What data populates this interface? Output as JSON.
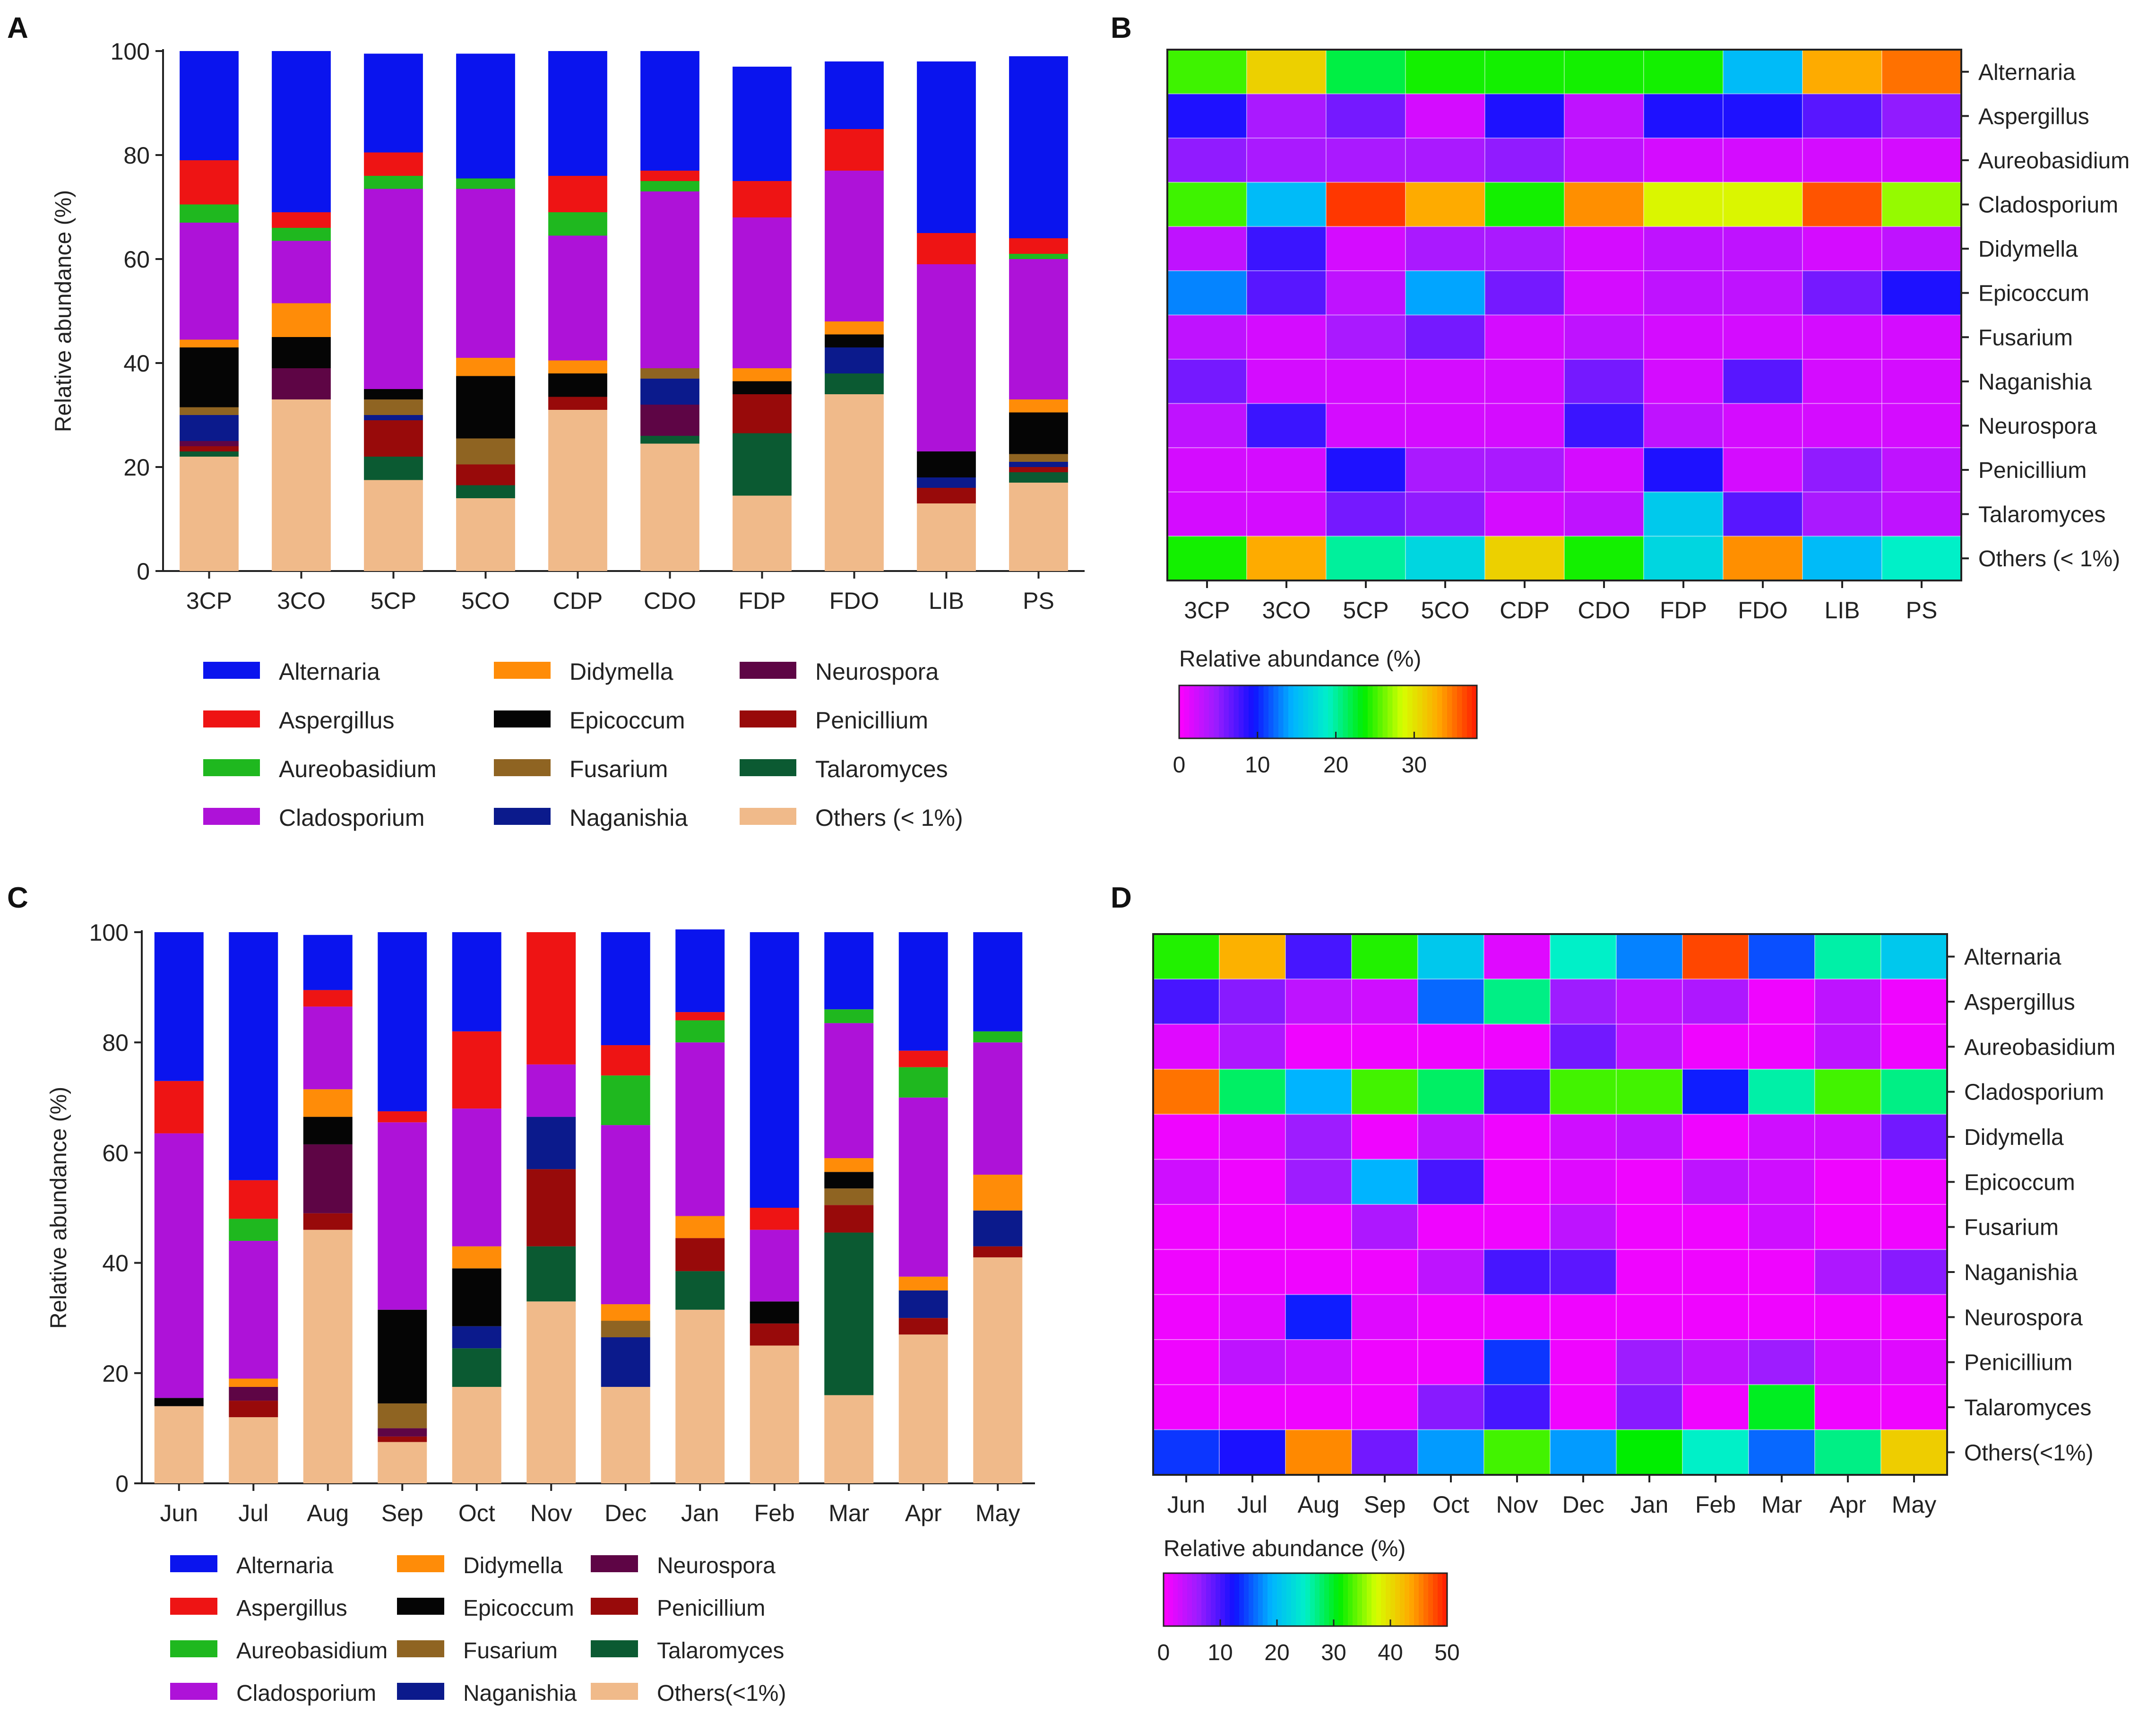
{
  "panels": {
    "a": "A",
    "b": "B",
    "c": "C",
    "d": "D"
  },
  "genera": [
    "Alternaria",
    "Aspergillus",
    "Aureobasidium",
    "Cladosporium",
    "Didymella",
    "Epicoccum",
    "Fusarium",
    "Naganishia",
    "Neurospora",
    "Penicillium",
    "Talaromyces"
  ],
  "colors": {
    "Alternaria": "#0a14ee",
    "Aspergillus": "#ee1414",
    "Aureobasidium": "#1fb81f",
    "Cladosporium": "#ae12d8",
    "Didymella": "#ff8c08",
    "Epicoccum": "#050505",
    "Fusarium": "#8f6422",
    "Naganishia": "#0b1a8c",
    "Neurospora": "#5e0545",
    "Penicillium": "#980a0a",
    "Talaromyces": "#0b5a32",
    "Others": "#f0ba8a"
  },
  "chart_data": [
    {
      "id": "A",
      "type": "bar",
      "stacked": true,
      "ylabel": "Relative abundance (%)",
      "ylim": [
        0,
        100
      ],
      "yticks": [
        0,
        20,
        40,
        60,
        80,
        100
      ],
      "categories": [
        "3CP",
        "3CO",
        "5CP",
        "5CO",
        "CDP",
        "CDO",
        "FDP",
        "FDO",
        "LIB",
        "PS"
      ],
      "series": [
        {
          "name": "Others (< 1%)",
          "key": "Others",
          "values": [
            22,
            33,
            17.5,
            14,
            31,
            24.5,
            14.5,
            34,
            13,
            17
          ]
        },
        {
          "name": "Talaromyces",
          "key": "Talaromyces",
          "values": [
            1,
            0,
            4.5,
            2.5,
            0,
            1.5,
            12,
            4,
            0,
            2
          ]
        },
        {
          "name": "Penicillium",
          "key": "Penicillium",
          "values": [
            1,
            0,
            7,
            4,
            2.5,
            0,
            7.5,
            0,
            3,
            1
          ]
        },
        {
          "name": "Neurospora",
          "key": "Neurospora",
          "values": [
            1,
            6,
            0,
            0,
            0,
            6,
            0,
            0,
            0,
            0
          ]
        },
        {
          "name": "Naganishia",
          "key": "Naganishia",
          "values": [
            5,
            0,
            1,
            0,
            0,
            5,
            0,
            5,
            2,
            1
          ]
        },
        {
          "name": "Fusarium",
          "key": "Fusarium",
          "values": [
            1.5,
            0,
            3,
            5,
            0,
            2,
            0,
            0,
            0,
            1.5
          ]
        },
        {
          "name": "Epicoccum",
          "key": "Epicoccum",
          "values": [
            11.5,
            6,
            2,
            12,
            4.5,
            0,
            2.5,
            2.5,
            5,
            8
          ]
        },
        {
          "name": "Didymella",
          "key": "Didymella",
          "values": [
            1.5,
            6.5,
            0,
            3.5,
            2.5,
            0,
            2.5,
            2.5,
            0,
            2.5
          ]
        },
        {
          "name": "Cladosporium",
          "key": "Cladosporium",
          "values": [
            22.5,
            12,
            38.5,
            32.5,
            24,
            34,
            29,
            29,
            36,
            27
          ]
        },
        {
          "name": "Aureobasidium",
          "key": "Aureobasidium",
          "values": [
            3.5,
            2.5,
            2.5,
            2,
            4.5,
            2,
            0,
            0,
            0,
            1
          ]
        },
        {
          "name": "Aspergillus",
          "key": "Aspergillus",
          "values": [
            8.5,
            3,
            4.5,
            0,
            7,
            2,
            7,
            8,
            6,
            3
          ]
        },
        {
          "name": "Alternaria",
          "key": "Alternaria",
          "values": [
            21,
            31,
            19,
            24,
            24,
            23,
            22,
            13,
            33,
            35
          ]
        }
      ],
      "legend": {
        "columns": [
          [
            "Alternaria",
            "Aspergillus",
            "Aureobasidium",
            "Cladosporium"
          ],
          [
            "Didymella",
            "Epicoccum",
            "Fusarium",
            "Naganishia"
          ],
          [
            "Neurospora",
            "Penicillium",
            "Talaromyces",
            "Others (< 1%)"
          ]
        ],
        "keys": [
          [
            "Alternaria",
            "Aspergillus",
            "Aureobasidium",
            "Cladosporium"
          ],
          [
            "Didymella",
            "Epicoccum",
            "Fusarium",
            "Naganishia"
          ],
          [
            "Neurospora",
            "Penicillium",
            "Talaromyces",
            "Others"
          ]
        ]
      }
    },
    {
      "id": "B",
      "type": "heatmap",
      "colorbar_label": "Relative abundance (%)",
      "vmin": 0,
      "vmax": 38,
      "colorbar_ticks": [
        0,
        10,
        20,
        30
      ],
      "columns": [
        "3CP",
        "3CO",
        "5CP",
        "5CO",
        "CDP",
        "CDO",
        "FDP",
        "FDO",
        "LIB",
        "PS"
      ],
      "rows": [
        "Alternaria",
        "Aspergillus",
        "Aureobasidium",
        "Cladosporium",
        "Didymella",
        "Epicoccum",
        "Fusarium",
        "Naganishia",
        "Neurospora",
        "Penicillium",
        "Talaromyces",
        "Others (< 1%)"
      ],
      "values": [
        [
          25,
          31,
          22,
          24,
          24,
          24,
          24,
          15,
          33,
          35
        ],
        [
          9,
          4,
          6,
          2,
          9,
          3,
          9,
          9,
          7,
          5
        ],
        [
          5,
          4,
          4,
          4,
          5,
          3,
          2,
          2,
          2,
          2
        ],
        [
          25,
          15,
          37,
          33,
          24,
          34,
          29,
          29,
          36,
          27
        ],
        [
          3,
          8,
          2,
          4,
          4,
          2,
          3,
          3,
          2,
          3
        ],
        [
          13,
          7,
          3,
          14,
          6,
          2,
          3,
          3,
          6,
          9
        ],
        [
          3,
          2,
          4,
          6,
          2,
          3,
          2,
          2,
          2,
          2
        ],
        [
          6,
          2,
          2,
          2,
          2,
          6,
          2,
          7,
          2,
          2
        ],
        [
          3,
          8,
          2,
          2,
          2,
          8,
          3,
          2,
          2,
          2
        ],
        [
          2,
          2,
          9,
          4,
          4,
          2,
          9,
          2,
          5,
          3
        ],
        [
          2,
          2,
          6,
          5,
          2,
          3,
          16,
          7,
          4,
          3
        ],
        [
          24,
          33,
          20,
          17,
          31,
          24,
          17,
          34,
          15,
          19
        ]
      ]
    },
    {
      "id": "C",
      "type": "bar",
      "stacked": true,
      "ylabel": "Relative abundance (%)",
      "ylim": [
        0,
        100
      ],
      "yticks": [
        0,
        20,
        40,
        60,
        80,
        100
      ],
      "categories": [
        "Jun",
        "Jul",
        "Aug",
        "Sep",
        "Oct",
        "Nov",
        "Dec",
        "Jan",
        "Feb",
        "Mar",
        "Apr",
        "May"
      ],
      "series": [
        {
          "name": "Others(<1%)",
          "key": "Others",
          "values": [
            14,
            12,
            46,
            7.5,
            17.5,
            33,
            17.5,
            31.5,
            25,
            16,
            27,
            41
          ]
        },
        {
          "name": "Talaromyces",
          "key": "Talaromyces",
          "values": [
            0,
            0,
            0,
            0,
            7,
            10,
            0,
            7,
            0,
            29.5,
            0,
            0
          ]
        },
        {
          "name": "Penicillium",
          "key": "Penicillium",
          "values": [
            0,
            3,
            3,
            1,
            0,
            14,
            0,
            6,
            4,
            5,
            3,
            2
          ]
        },
        {
          "name": "Neurospora",
          "key": "Neurospora",
          "values": [
            0,
            2.5,
            12.5,
            1.5,
            0,
            0,
            0,
            0,
            0,
            0,
            0,
            0
          ]
        },
        {
          "name": "Naganishia",
          "key": "Naganishia",
          "values": [
            0,
            0,
            0,
            0,
            4,
            9.5,
            9,
            0,
            0,
            0,
            5,
            6.5
          ]
        },
        {
          "name": "Fusarium",
          "key": "Fusarium",
          "values": [
            0,
            0,
            0,
            4.5,
            0,
            0,
            3,
            0,
            0,
            3,
            0,
            0
          ]
        },
        {
          "name": "Epicoccum",
          "key": "Epicoccum",
          "values": [
            1.5,
            0,
            5,
            17,
            10.5,
            0,
            0,
            0,
            4,
            3,
            0,
            0
          ]
        },
        {
          "name": "Didymella",
          "key": "Didymella",
          "values": [
            0,
            1.5,
            5,
            0,
            4,
            0,
            3,
            4,
            0,
            2.5,
            2.5,
            6.5
          ]
        },
        {
          "name": "Cladosporium",
          "key": "Cladosporium",
          "values": [
            48,
            25,
            15,
            34,
            25,
            9.5,
            32.5,
            31.5,
            13,
            24.5,
            32.5,
            24
          ]
        },
        {
          "name": "Aureobasidium",
          "key": "Aureobasidium",
          "values": [
            0,
            4,
            0,
            0,
            0,
            0,
            9,
            4,
            0,
            2.5,
            5.5,
            2
          ]
        },
        {
          "name": "Aspergillus",
          "key": "Aspergillus",
          "values": [
            9.5,
            7,
            3,
            2,
            14,
            24,
            5.5,
            1.5,
            4,
            0,
            3,
            0
          ]
        },
        {
          "name": "Alternaria",
          "key": "Alternaria",
          "values": [
            27,
            45,
            10,
            32.5,
            18,
            0,
            20.5,
            15,
            50,
            14,
            21.5,
            18
          ]
        }
      ],
      "legend": {
        "columns": [
          [
            "Alternaria",
            "Aspergillus",
            "Aureobasidium",
            "Cladosporium"
          ],
          [
            "Didymella",
            "Epicoccum",
            "Fusarium",
            "Naganishia"
          ],
          [
            "Neurospora",
            "Penicillium",
            "Talaromyces",
            "Others(<1%)"
          ]
        ],
        "keys": [
          [
            "Alternaria",
            "Aspergillus",
            "Aureobasidium",
            "Cladosporium"
          ],
          [
            "Didymella",
            "Epicoccum",
            "Fusarium",
            "Naganishia"
          ],
          [
            "Neurospora",
            "Penicillium",
            "Talaromyces",
            "Others"
          ]
        ]
      }
    },
    {
      "id": "D",
      "type": "heatmap",
      "colorbar_label": "Relative abundance (%)",
      "vmin": 0,
      "vmax": 50,
      "colorbar_ticks": [
        0,
        10,
        20,
        30,
        40,
        50
      ],
      "columns": [
        "Jun",
        "Jul",
        "Aug",
        "Sep",
        "Oct",
        "Nov",
        "Dec",
        "Jan",
        "Feb",
        "Mar",
        "Apr",
        "May"
      ],
      "rows": [
        "Alternaria",
        "Aspergillus",
        "Aureobasidium",
        "Cladosporium",
        "Didymella",
        "Epicoccum",
        "Fusarium",
        "Naganishia",
        "Neurospora",
        "Penicillium",
        "Talaromyces",
        "Others(<1%)"
      ],
      "values": [
        [
          32,
          43,
          10,
          32,
          21,
          2,
          25,
          17,
          48,
          15,
          26,
          21
        ],
        [
          10,
          7,
          4,
          3,
          16,
          27,
          6,
          4,
          5,
          1,
          4,
          1
        ],
        [
          2,
          5,
          1,
          1,
          1,
          1,
          8,
          4,
          1,
          1,
          4,
          1
        ],
        [
          46,
          28,
          19,
          33,
          28,
          10,
          33,
          33,
          13,
          26,
          33,
          27
        ],
        [
          1,
          2,
          6,
          1,
          4,
          1,
          3,
          4,
          1,
          3,
          3,
          8
        ],
        [
          3,
          1,
          6,
          19,
          10,
          1,
          2,
          1,
          4,
          3,
          1,
          1
        ],
        [
          1,
          1,
          1,
          5,
          1,
          1,
          4,
          1,
          1,
          3,
          1,
          1
        ],
        [
          1,
          1,
          1,
          1,
          4,
          10,
          9,
          1,
          1,
          1,
          5,
          7
        ],
        [
          1,
          2,
          13,
          2,
          1,
          1,
          1,
          1,
          1,
          1,
          1,
          1
        ],
        [
          1,
          4,
          3,
          1,
          1,
          14,
          1,
          6,
          4,
          6,
          3,
          2
        ],
        [
          1,
          1,
          1,
          1,
          7,
          10,
          1,
          7,
          1,
          30,
          1,
          1
        ],
        [
          14,
          12,
          45,
          8,
          18,
          33,
          18,
          31,
          25,
          16,
          27,
          41
        ]
      ]
    }
  ]
}
